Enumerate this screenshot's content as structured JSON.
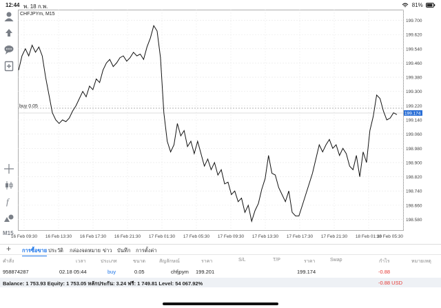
{
  "status": {
    "time": "12:44",
    "date": "พ. 18 ก.พ.",
    "battery": "81%"
  },
  "chart": {
    "symbol_label": "CHFJPYm, M15",
    "order_line_label": "buy 0.05",
    "current_price": "199.174",
    "price_ticks": [
      "199.700",
      "199.620",
      "199.540",
      "199.460",
      "199.380",
      "199.300",
      "199.220",
      "199.140",
      "199.060",
      "198.980",
      "198.900",
      "198.820",
      "198.740",
      "198.660",
      "198.580"
    ],
    "time_ticks": [
      "16 Feb 09:30",
      "16 Feb 13:30",
      "16 Feb 17:30",
      "16 Feb 21:30",
      "17 Feb 01:30",
      "17 Feb 05:30",
      "17 Feb 09:30",
      "17 Feb 13:30",
      "17 Feb 17:30",
      "17 Feb 21:30",
      "18 Feb 01:30",
      "18 Feb 05:30"
    ],
    "timeframe": "M15"
  },
  "chart_data": {
    "type": "line",
    "ylim": [
      198.52,
      199.76
    ],
    "y": [
      199.42,
      199.5,
      199.54,
      199.5,
      199.56,
      199.52,
      199.55,
      199.5,
      199.38,
      199.28,
      199.18,
      199.14,
      199.12,
      199.14,
      199.13,
      199.15,
      199.19,
      199.22,
      199.26,
      199.3,
      199.27,
      199.33,
      199.31,
      199.37,
      199.35,
      199.42,
      199.46,
      199.48,
      199.44,
      199.46,
      199.49,
      199.5,
      199.47,
      199.49,
      199.52,
      199.5,
      199.51,
      199.48,
      199.55,
      199.6,
      199.67,
      199.64,
      199.49,
      199.18,
      199.02,
      198.96,
      199.0,
      199.12,
      199.05,
      199.08,
      198.99,
      199.02,
      198.95,
      199.02,
      198.95,
      198.88,
      198.92,
      198.86,
      198.9,
      198.83,
      198.86,
      198.78,
      198.79,
      198.72,
      198.74,
      198.68,
      198.7,
      198.62,
      198.66,
      198.57,
      198.63,
      198.67,
      198.75,
      198.81,
      198.94,
      198.84,
      198.83,
      198.76,
      198.72,
      198.68,
      198.74,
      198.62,
      198.6,
      198.6,
      198.66,
      198.72,
      198.78,
      198.84,
      198.92,
      199.0,
      198.96,
      199.0,
      199.03,
      198.98,
      199.0,
      198.94,
      198.98,
      198.95,
      198.88,
      198.86,
      198.94,
      198.82,
      198.96,
      198.9,
      199.08,
      199.16,
      199.28,
      199.26,
      199.19,
      199.14,
      199.15,
      199.18,
      199.17
    ]
  },
  "sidebar": {
    "timeframe_label": "M15"
  },
  "tabs": [
    "การซื้อขาย",
    "ประวัติ",
    "กล่องจดหมาย",
    "ข่าว",
    "บันทึก",
    "การตั้งค่า"
  ],
  "trade_table": {
    "headers": [
      "คำสั่ง",
      "เวลา",
      "ประเภท",
      "ขนาด",
      "สัญลักษณ์",
      "ราคา",
      "S/L",
      "T/P",
      "ราคา",
      "Swap",
      "กำไร",
      "หมายเหตุ"
    ],
    "row": [
      "958874287",
      "02.18 05:44",
      "buy",
      "0.05",
      "chfjpym",
      "199.201",
      "",
      "",
      "199.174",
      "",
      "-0.88",
      ""
    ]
  },
  "balance": {
    "text": "Balance: 1 753.93 Equity: 1 753.05 หลักประกัน: 3.24 ฟรี: 1 749.81 Level: 54 067.92%",
    "pnl": "-0.88  USD"
  },
  "colors": {
    "accent": "#1a73e8",
    "loss": "#e53935",
    "line": "#111111"
  }
}
